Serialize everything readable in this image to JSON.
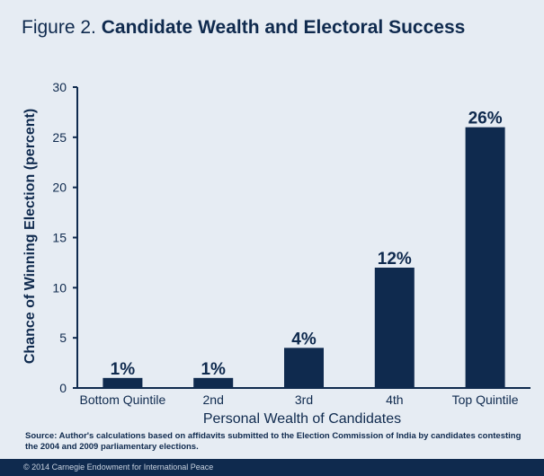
{
  "figure": {
    "label": "Figure 2.",
    "title": "Candidate Wealth  and Electoral Success",
    "source": "Source: Author's calculations based on affidavits submitted to the Election Commission of India by candidates contesting the 2004 and 2009 parliamentary elections.",
    "copyright": "© 2014 Carnegie Endowment for International Peace"
  },
  "colors": {
    "background": "#e6ecf3",
    "bar": "#0f2a4e",
    "text": "#0f2a4e",
    "footer": "#0f2a4e"
  },
  "chart_data": {
    "type": "bar",
    "xlabel": "Personal Wealth of Candidates",
    "ylabel": "Chance of Winning Election (percent)",
    "ylim": [
      0,
      30
    ],
    "yticks": [
      0,
      5,
      10,
      15,
      20,
      25,
      30
    ],
    "grid": false,
    "categories": [
      "Bottom Quintile",
      "2nd",
      "3rd",
      "4th",
      "Top Quintile"
    ],
    "values": [
      1,
      1,
      4,
      12,
      26
    ],
    "data_labels": [
      "1%",
      "1%",
      "4%",
      "12%",
      "26%"
    ]
  }
}
